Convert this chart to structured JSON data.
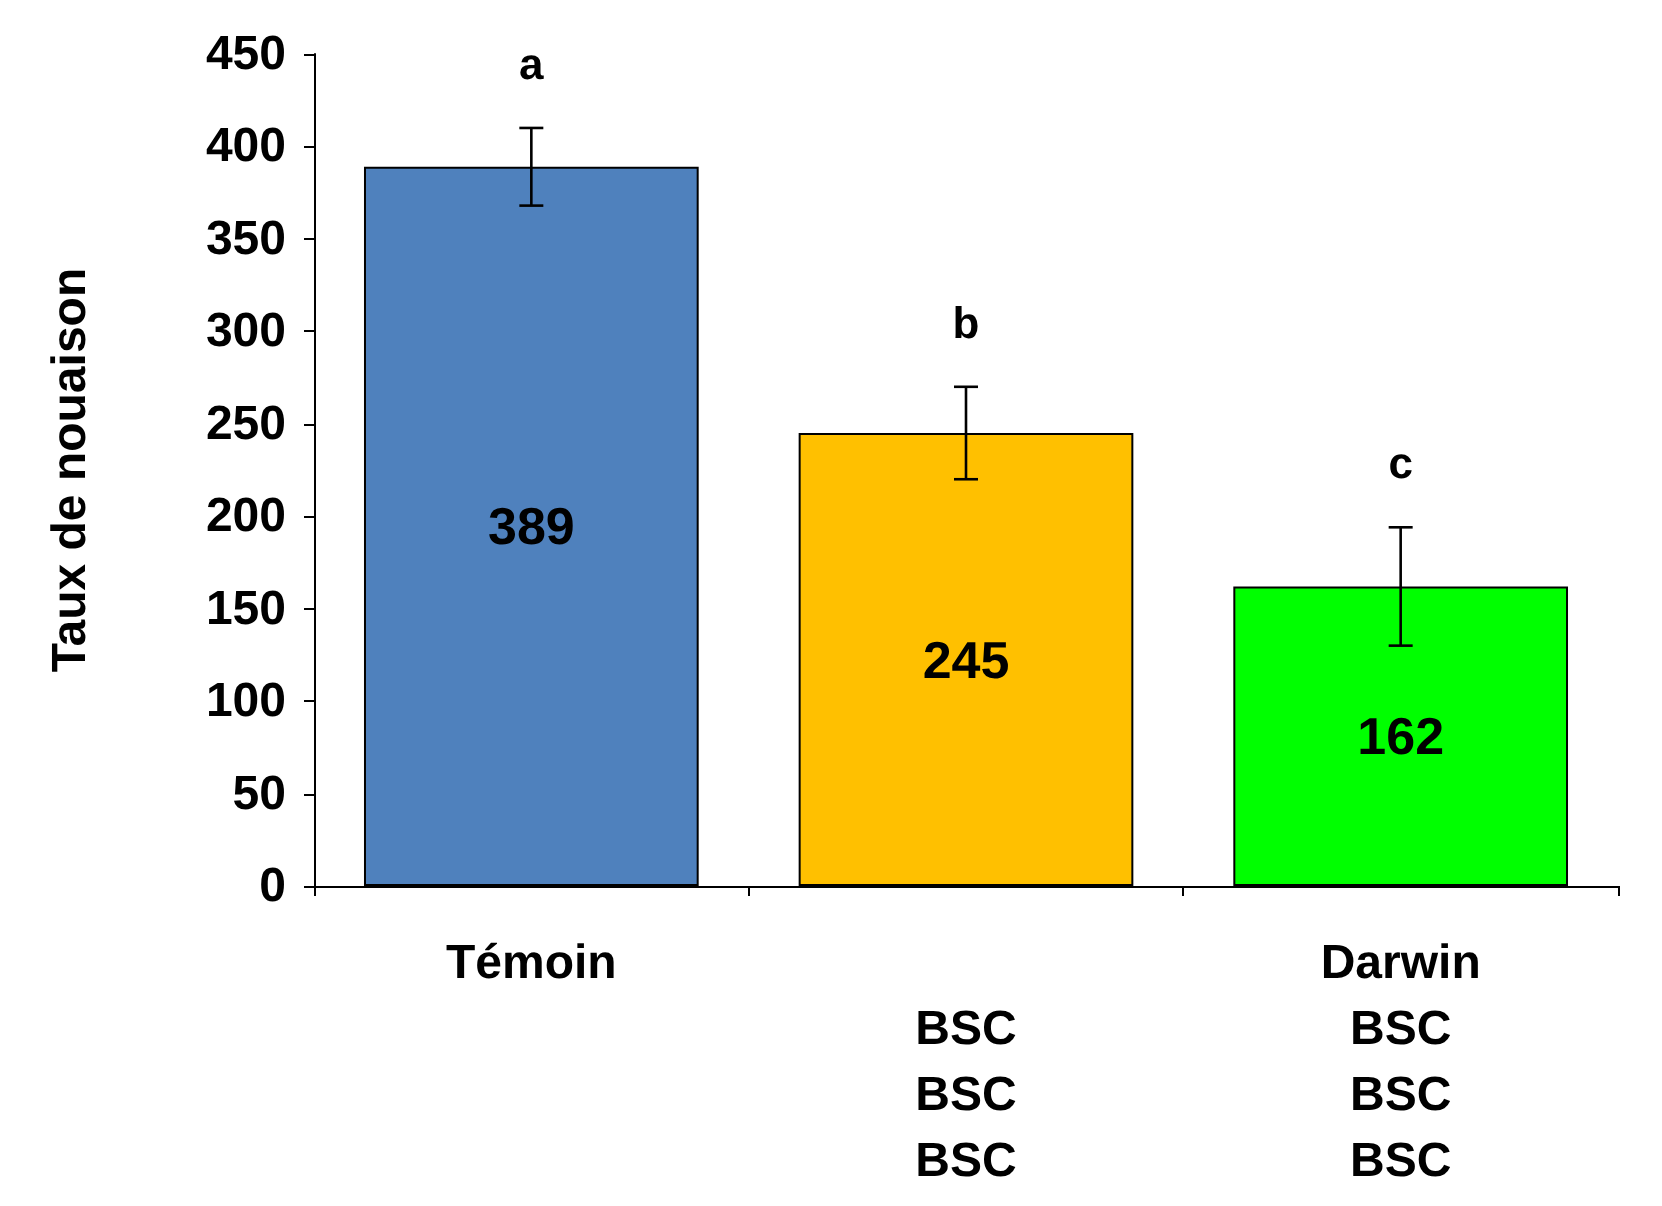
{
  "chart_data": {
    "type": "bar",
    "ylabel": "Taux de nouaison",
    "categories": [
      "Témoin",
      "BSC\nBSC\nBSC",
      "Darwin\nBSC\nBSC\nBSC"
    ],
    "values": [
      389,
      245,
      162
    ],
    "colors": [
      "#4f81bd",
      "#ffc000",
      "#00ff00"
    ],
    "errors": [
      21,
      25,
      32
    ],
    "data_labels": true,
    "ylim": [
      0,
      450
    ],
    "yticks": [
      0,
      50,
      100,
      150,
      200,
      250,
      300,
      350,
      400,
      450
    ],
    "grid": false,
    "annotations": [
      "a",
      "b",
      "c"
    ]
  }
}
